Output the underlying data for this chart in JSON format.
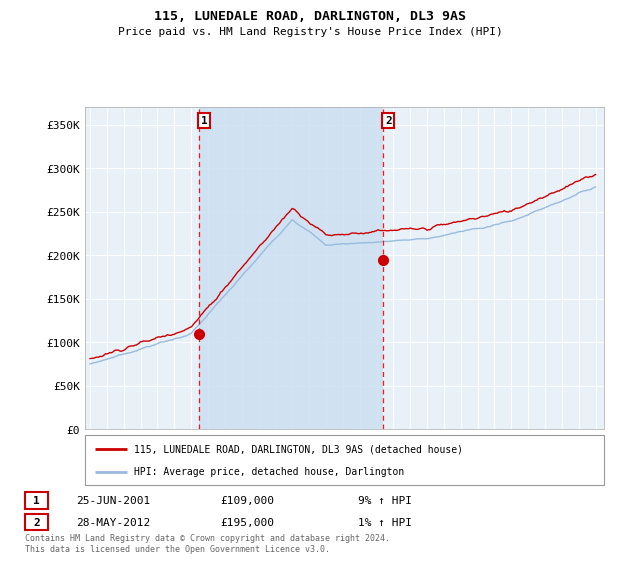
{
  "title": "115, LUNEDALE ROAD, DARLINGTON, DL3 9AS",
  "subtitle": "Price paid vs. HM Land Registry's House Price Index (HPI)",
  "ylabel_ticks": [
    "£0",
    "£50K",
    "£100K",
    "£150K",
    "£200K",
    "£250K",
    "£300K",
    "£350K"
  ],
  "ytick_values": [
    0,
    50000,
    100000,
    150000,
    200000,
    250000,
    300000,
    350000
  ],
  "ylim": [
    0,
    370000
  ],
  "xlim_start": 1994.7,
  "xlim_end": 2025.5,
  "sale1_x": 2001.48,
  "sale1_y": 109000,
  "sale2_x": 2012.4,
  "sale2_y": 195000,
  "legend_line1": "115, LUNEDALE ROAD, DARLINGTON, DL3 9AS (detached house)",
  "legend_line2": "HPI: Average price, detached house, Darlington",
  "sale1_date": "25-JUN-2001",
  "sale1_price": "£109,000",
  "sale1_hpi": "9% ↑ HPI",
  "sale2_date": "28-MAY-2012",
  "sale2_price": "£195,000",
  "sale2_hpi": "1% ↑ HPI",
  "footer": "Contains HM Land Registry data © Crown copyright and database right 2024.\nThis data is licensed under the Open Government Licence v3.0.",
  "line_color_red": "#cc0000",
  "line_color_blue": "#99bbdd",
  "shade_color": "#cce0f0",
  "plot_bg": "#e8f0f8"
}
